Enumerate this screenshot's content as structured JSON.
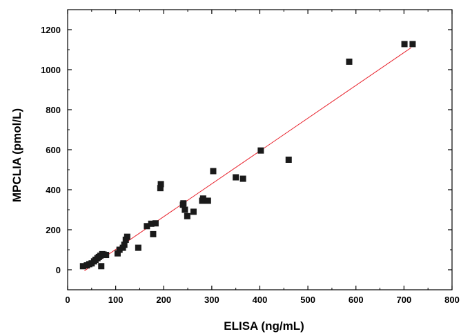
{
  "chart_data": {
    "type": "scatter",
    "title": "",
    "xlabel": "ELISA (ng/mL)",
    "ylabel": "MPCLIA  (pmol/L)",
    "xlim": [
      0,
      800
    ],
    "ylim": [
      -100,
      1300
    ],
    "x_ticks": [
      0,
      100,
      200,
      300,
      400,
      500,
      600,
      700,
      800
    ],
    "y_ticks": [
      0,
      200,
      400,
      600,
      800,
      1000,
      1200
    ],
    "grid": false,
    "legend": "none",
    "marker": "square",
    "colors": {
      "points": "#1a1a1a",
      "fit_line": "#e8212b",
      "axes": "#000000"
    },
    "series": [
      {
        "points": [
          [
            32,
            18
          ],
          [
            40,
            22
          ],
          [
            45,
            28
          ],
          [
            50,
            32
          ],
          [
            55,
            42
          ],
          [
            58,
            50
          ],
          [
            62,
            58
          ],
          [
            65,
            64
          ],
          [
            68,
            70
          ],
          [
            70,
            18
          ],
          [
            72,
            78
          ],
          [
            75,
            76
          ],
          [
            80,
            74
          ],
          [
            104,
            82
          ],
          [
            108,
            100
          ],
          [
            115,
            110
          ],
          [
            118,
            125
          ],
          [
            121,
            150
          ],
          [
            124,
            165
          ],
          [
            147,
            110
          ],
          [
            165,
            218
          ],
          [
            174,
            230
          ],
          [
            178,
            178
          ],
          [
            183,
            232
          ],
          [
            193,
            408
          ],
          [
            194,
            428
          ],
          [
            240,
            325
          ],
          [
            241,
            332
          ],
          [
            244,
            300
          ],
          [
            249,
            268
          ],
          [
            262,
            290
          ],
          [
            280,
            345
          ],
          [
            282,
            356
          ],
          [
            292,
            345
          ],
          [
            303,
            493
          ],
          [
            350,
            462
          ],
          [
            365,
            455
          ],
          [
            402,
            596
          ],
          [
            460,
            550
          ],
          [
            586,
            1040
          ],
          [
            701,
            1128
          ],
          [
            718,
            1128
          ]
        ]
      }
    ],
    "fit_line": {
      "x": [
        35,
        715
      ],
      "y": [
        -5,
        1110
      ]
    }
  }
}
